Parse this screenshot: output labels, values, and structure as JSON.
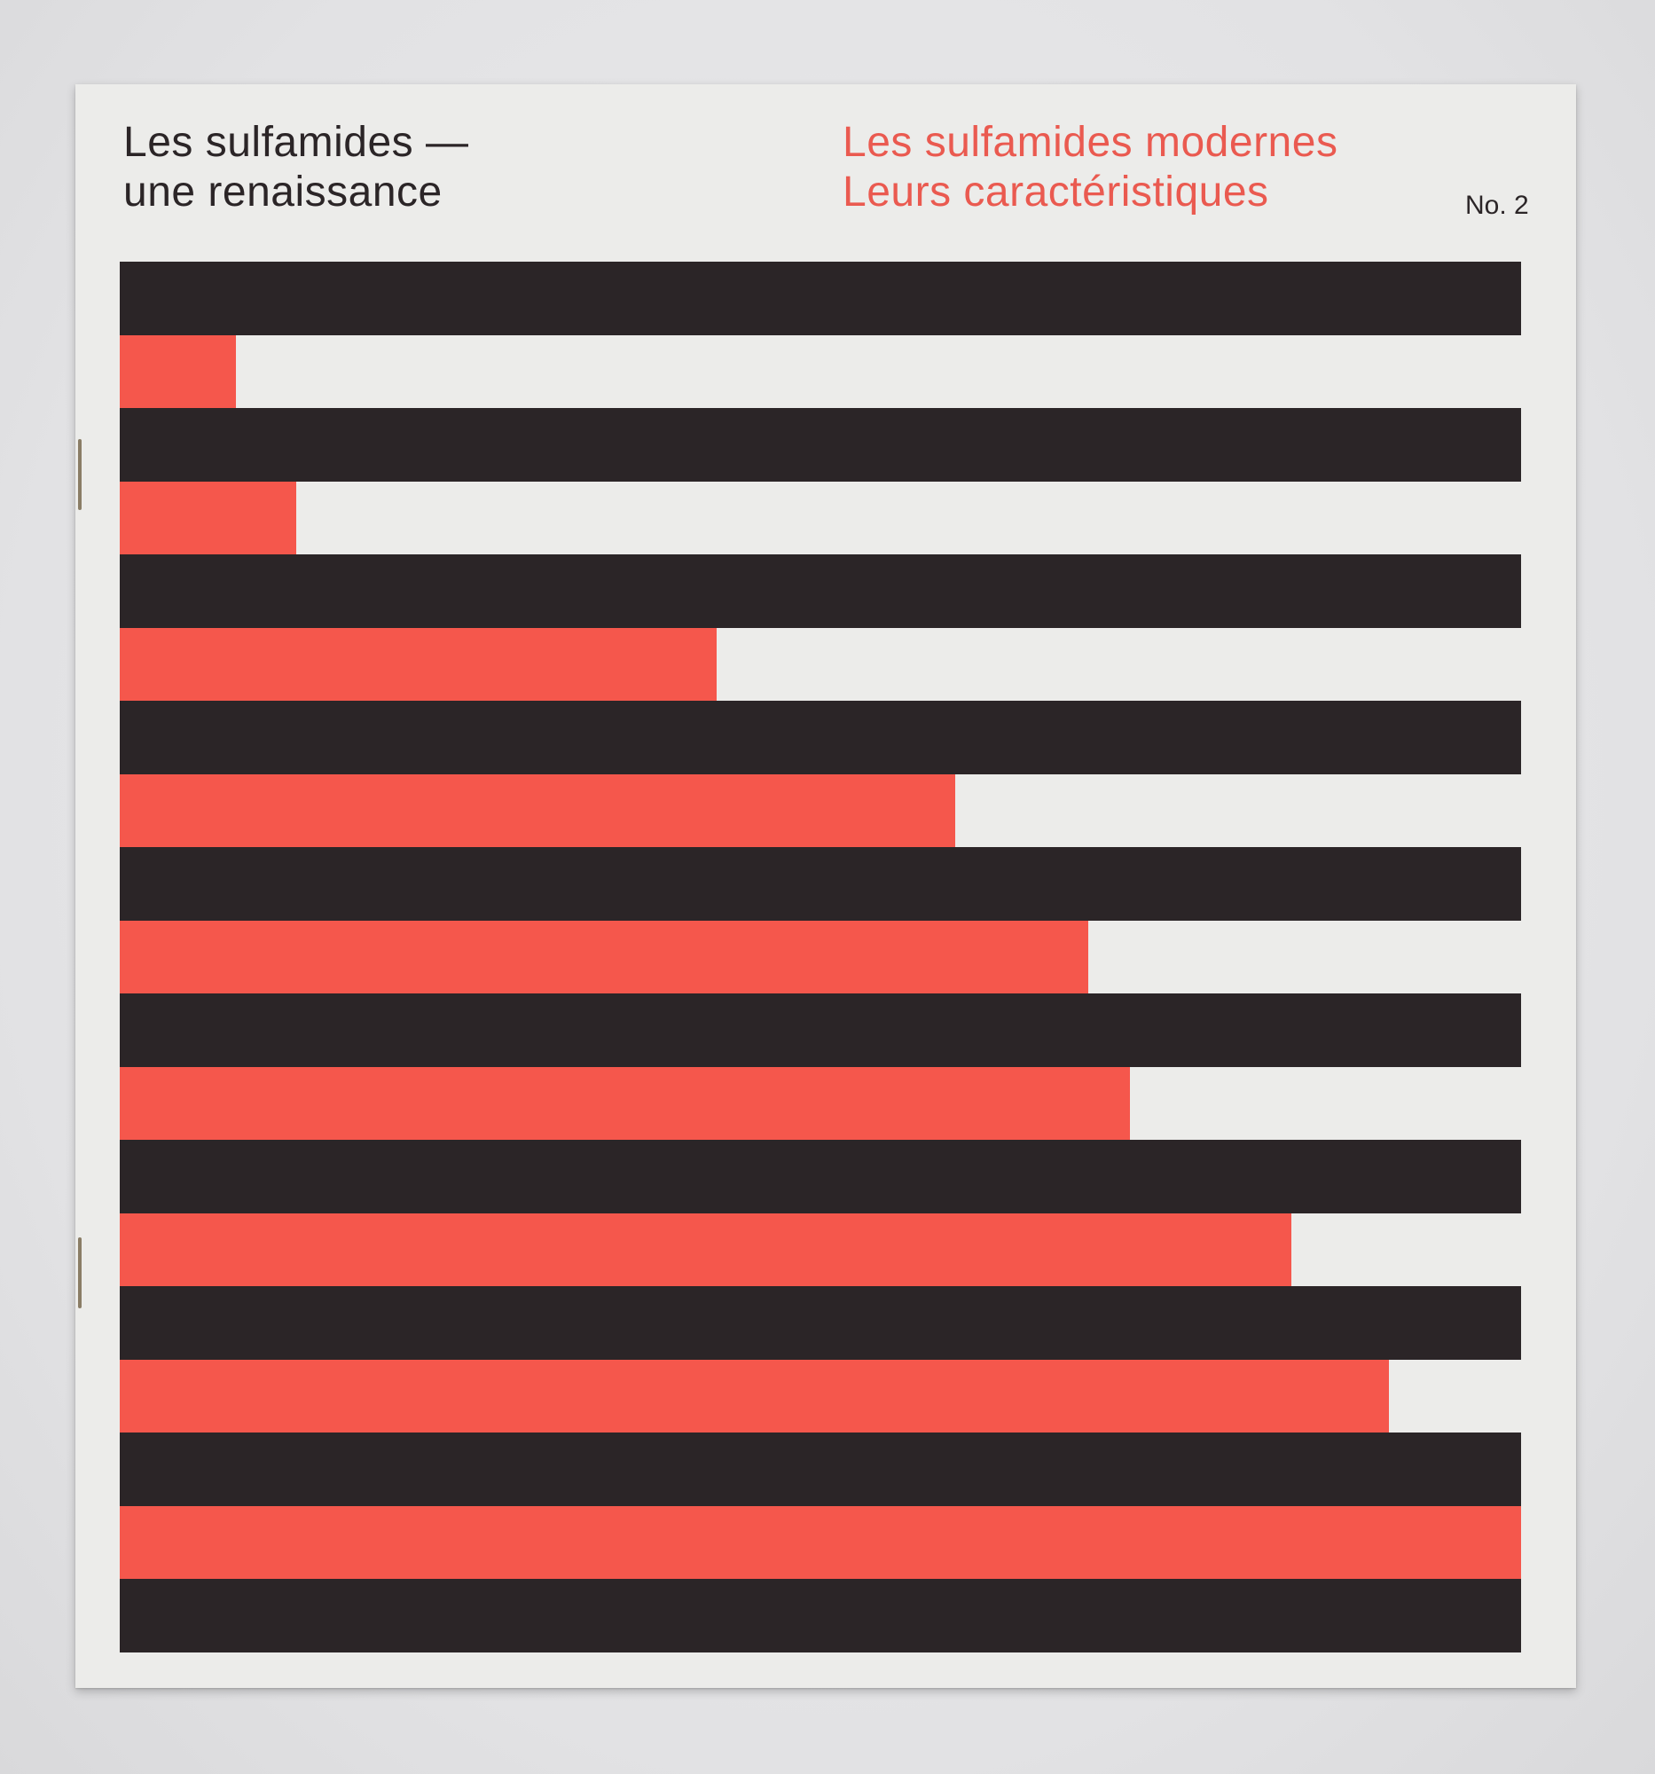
{
  "cover": {
    "series_title_line1": "Les sulfamides —",
    "series_title_line2": "une renaissance",
    "issue_title_line1": "Les sulfamides modernes",
    "issue_title_line2": "Leurs caractéristiques",
    "issue_number": "No. 2"
  },
  "colors": {
    "dark": "#2b2527",
    "red": "#f5574c",
    "paper": "#ececea",
    "background": "#e4e4e6"
  },
  "stripes": {
    "pattern": "alternating",
    "dark_bar_count": 10,
    "red_bar_fill_fraction": [
      0.083,
      0.126,
      0.426,
      0.596,
      0.691,
      0.721,
      0.836,
      0.906,
      1.0
    ]
  }
}
